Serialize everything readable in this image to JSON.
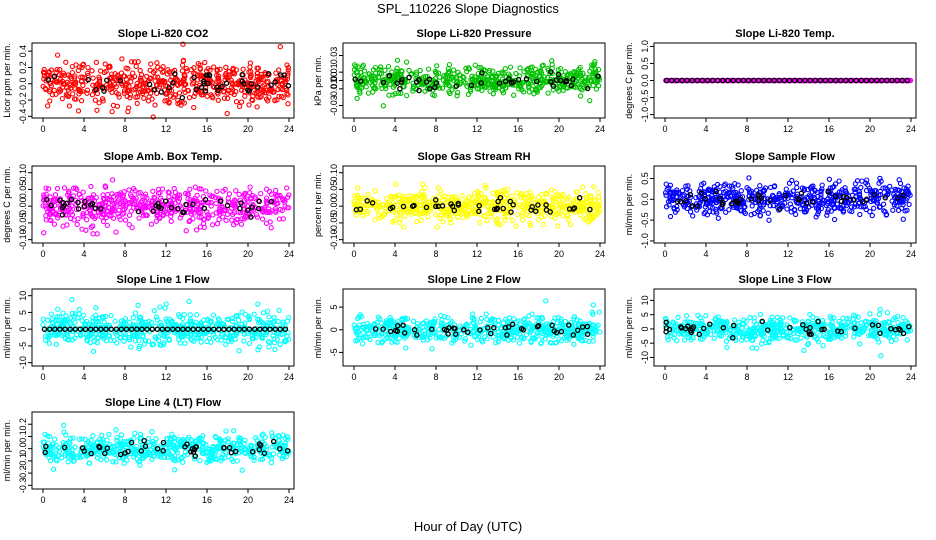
{
  "figure": {
    "title": "SPL_110226  Slope Diagnostics",
    "xlabel": "Hour of Day (UTC)"
  },
  "chart_data": [
    {
      "type": "scatter",
      "title": "Slope Li-820 CO2",
      "ylabel": "Licor ppm per min.",
      "color": "#ff0000",
      "xlim": [
        0,
        24
      ],
      "ylim": [
        -0.42,
        0.5
      ],
      "xticks": [
        0,
        4,
        8,
        12,
        16,
        20,
        24
      ],
      "yticks": [
        -0.4,
        -0.2,
        0.0,
        0.2,
        0.4
      ],
      "ytick_labels": [
        "-0.4",
        "-0.2",
        "0.0",
        "0.2",
        "0.4"
      ],
      "spread": 0.22
    },
    {
      "type": "scatter",
      "title": "Slope Li-820 Pressure",
      "ylabel": "kPa per min.",
      "color": "#00c000",
      "xlim": [
        0,
        24
      ],
      "ylim": [
        -0.045,
        0.045
      ],
      "xticks": [
        0,
        4,
        8,
        12,
        16,
        20,
        24
      ],
      "yticks": [
        -0.03,
        -0.01,
        0.0,
        0.01,
        0.03
      ],
      "ytick_labels": [
        "-0.03",
        "-0.01",
        "0.00",
        "0.01",
        "0.03"
      ],
      "spread": 0.014
    },
    {
      "type": "scatter",
      "title": "Slope Li-820 Temp.",
      "ylabel": "degrees C per min.",
      "color": "#ff00ff",
      "xlim": [
        0,
        24
      ],
      "ylim": [
        -1.1,
        1.1
      ],
      "xticks": [
        0,
        4,
        8,
        12,
        16,
        20,
        24
      ],
      "yticks": [
        -1.0,
        -0.5,
        0.0,
        0.5,
        1.0
      ],
      "ytick_labels": [
        "-1.0",
        "-0.5",
        "0.0",
        "0.5",
        "1.0"
      ],
      "spread": 0.0
    },
    {
      "type": "scatter",
      "title": "Slope Amb. Box Temp.",
      "ylabel": "degrees C per min.",
      "color": "#ff00ff",
      "xlim": [
        0,
        24
      ],
      "ylim": [
        -0.11,
        0.12
      ],
      "xticks": [
        0,
        4,
        8,
        12,
        16,
        20,
        24
      ],
      "yticks": [
        -0.1,
        -0.05,
        0.0,
        0.05,
        0.1
      ],
      "ytick_labels": [
        "-0.10",
        "-0.05",
        "0.00",
        "0.05",
        "0.10"
      ],
      "spread": 0.045
    },
    {
      "type": "scatter",
      "title": "Slope Gas Stream RH",
      "ylabel": "percent per min.",
      "color": "#ffff00",
      "xlim": [
        0,
        24
      ],
      "ylim": [
        -0.11,
        0.12
      ],
      "xticks": [
        0,
        4,
        8,
        12,
        16,
        20,
        24
      ],
      "yticks": [
        -0.1,
        -0.05,
        0.0,
        0.05,
        0.1
      ],
      "ytick_labels": [
        "-0.10",
        "-0.05",
        "0.00",
        "0.05",
        "0.10"
      ],
      "spread": 0.04
    },
    {
      "type": "scatter",
      "title": "Slope Sample Flow",
      "ylabel": "ml/min per min.",
      "color": "#0000ff",
      "xlim": [
        0,
        24
      ],
      "ylim": [
        -1.05,
        0.8
      ],
      "xticks": [
        0,
        4,
        8,
        12,
        16,
        20,
        24
      ],
      "yticks": [
        -1.0,
        -0.5,
        0.0,
        0.5
      ],
      "ytick_labels": [
        "-1.0",
        "-0.5",
        "0.0",
        "0.5"
      ],
      "spread": 0.32
    },
    {
      "type": "scatter",
      "title": "Slope Line 1 Flow",
      "ylabel": "ml/min per min.",
      "color": "#00ffff",
      "xlim": [
        0,
        24
      ],
      "ylim": [
        -11,
        12
      ],
      "xticks": [
        0,
        4,
        8,
        12,
        16,
        20,
        24
      ],
      "yticks": [
        -10,
        -5,
        0,
        5,
        10
      ],
      "ytick_labels": [
        "-10",
        "-5",
        "0",
        "5",
        "10"
      ],
      "spread": 4.0
    },
    {
      "type": "scatter",
      "title": "Slope Line 2 Flow",
      "ylabel": "ml/min per min.",
      "color": "#00ffff",
      "xlim": [
        0,
        24
      ],
      "ylim": [
        -8,
        9
      ],
      "xticks": [
        0,
        4,
        8,
        12,
        16,
        20,
        24
      ],
      "yticks": [
        -5,
        0,
        5
      ],
      "ytick_labels": [
        "-5",
        "0",
        "5"
      ],
      "spread": 2.4
    },
    {
      "type": "scatter",
      "title": "Slope Line 3 Flow",
      "ylabel": "ml/min per min.",
      "color": "#00ffff",
      "xlim": [
        0,
        24
      ],
      "ylim": [
        -13,
        14
      ],
      "xticks": [
        0,
        4,
        8,
        12,
        16,
        20,
        24
      ],
      "yticks": [
        -10,
        -5,
        0,
        5,
        10
      ],
      "ytick_labels": [
        "-10",
        "-5",
        "0",
        "5",
        "10"
      ],
      "spread": 3.6
    },
    {
      "type": "scatter",
      "title": "Slope Line 4 (LT) Flow",
      "ylabel": "ml/min per min.",
      "color": "#00ffff",
      "xlim": [
        0,
        24
      ],
      "ylim": [
        -0.33,
        0.3
      ],
      "xticks": [
        0,
        4,
        8,
        12,
        16,
        20,
        24
      ],
      "yticks": [
        -0.3,
        -0.2,
        -0.1,
        0.0,
        0.1,
        0.2
      ],
      "ytick_labels": [
        "-0.3",
        "-0.2",
        "-0.1",
        "0.0",
        "0.1",
        "0.2"
      ],
      "spread": 0.1
    }
  ]
}
